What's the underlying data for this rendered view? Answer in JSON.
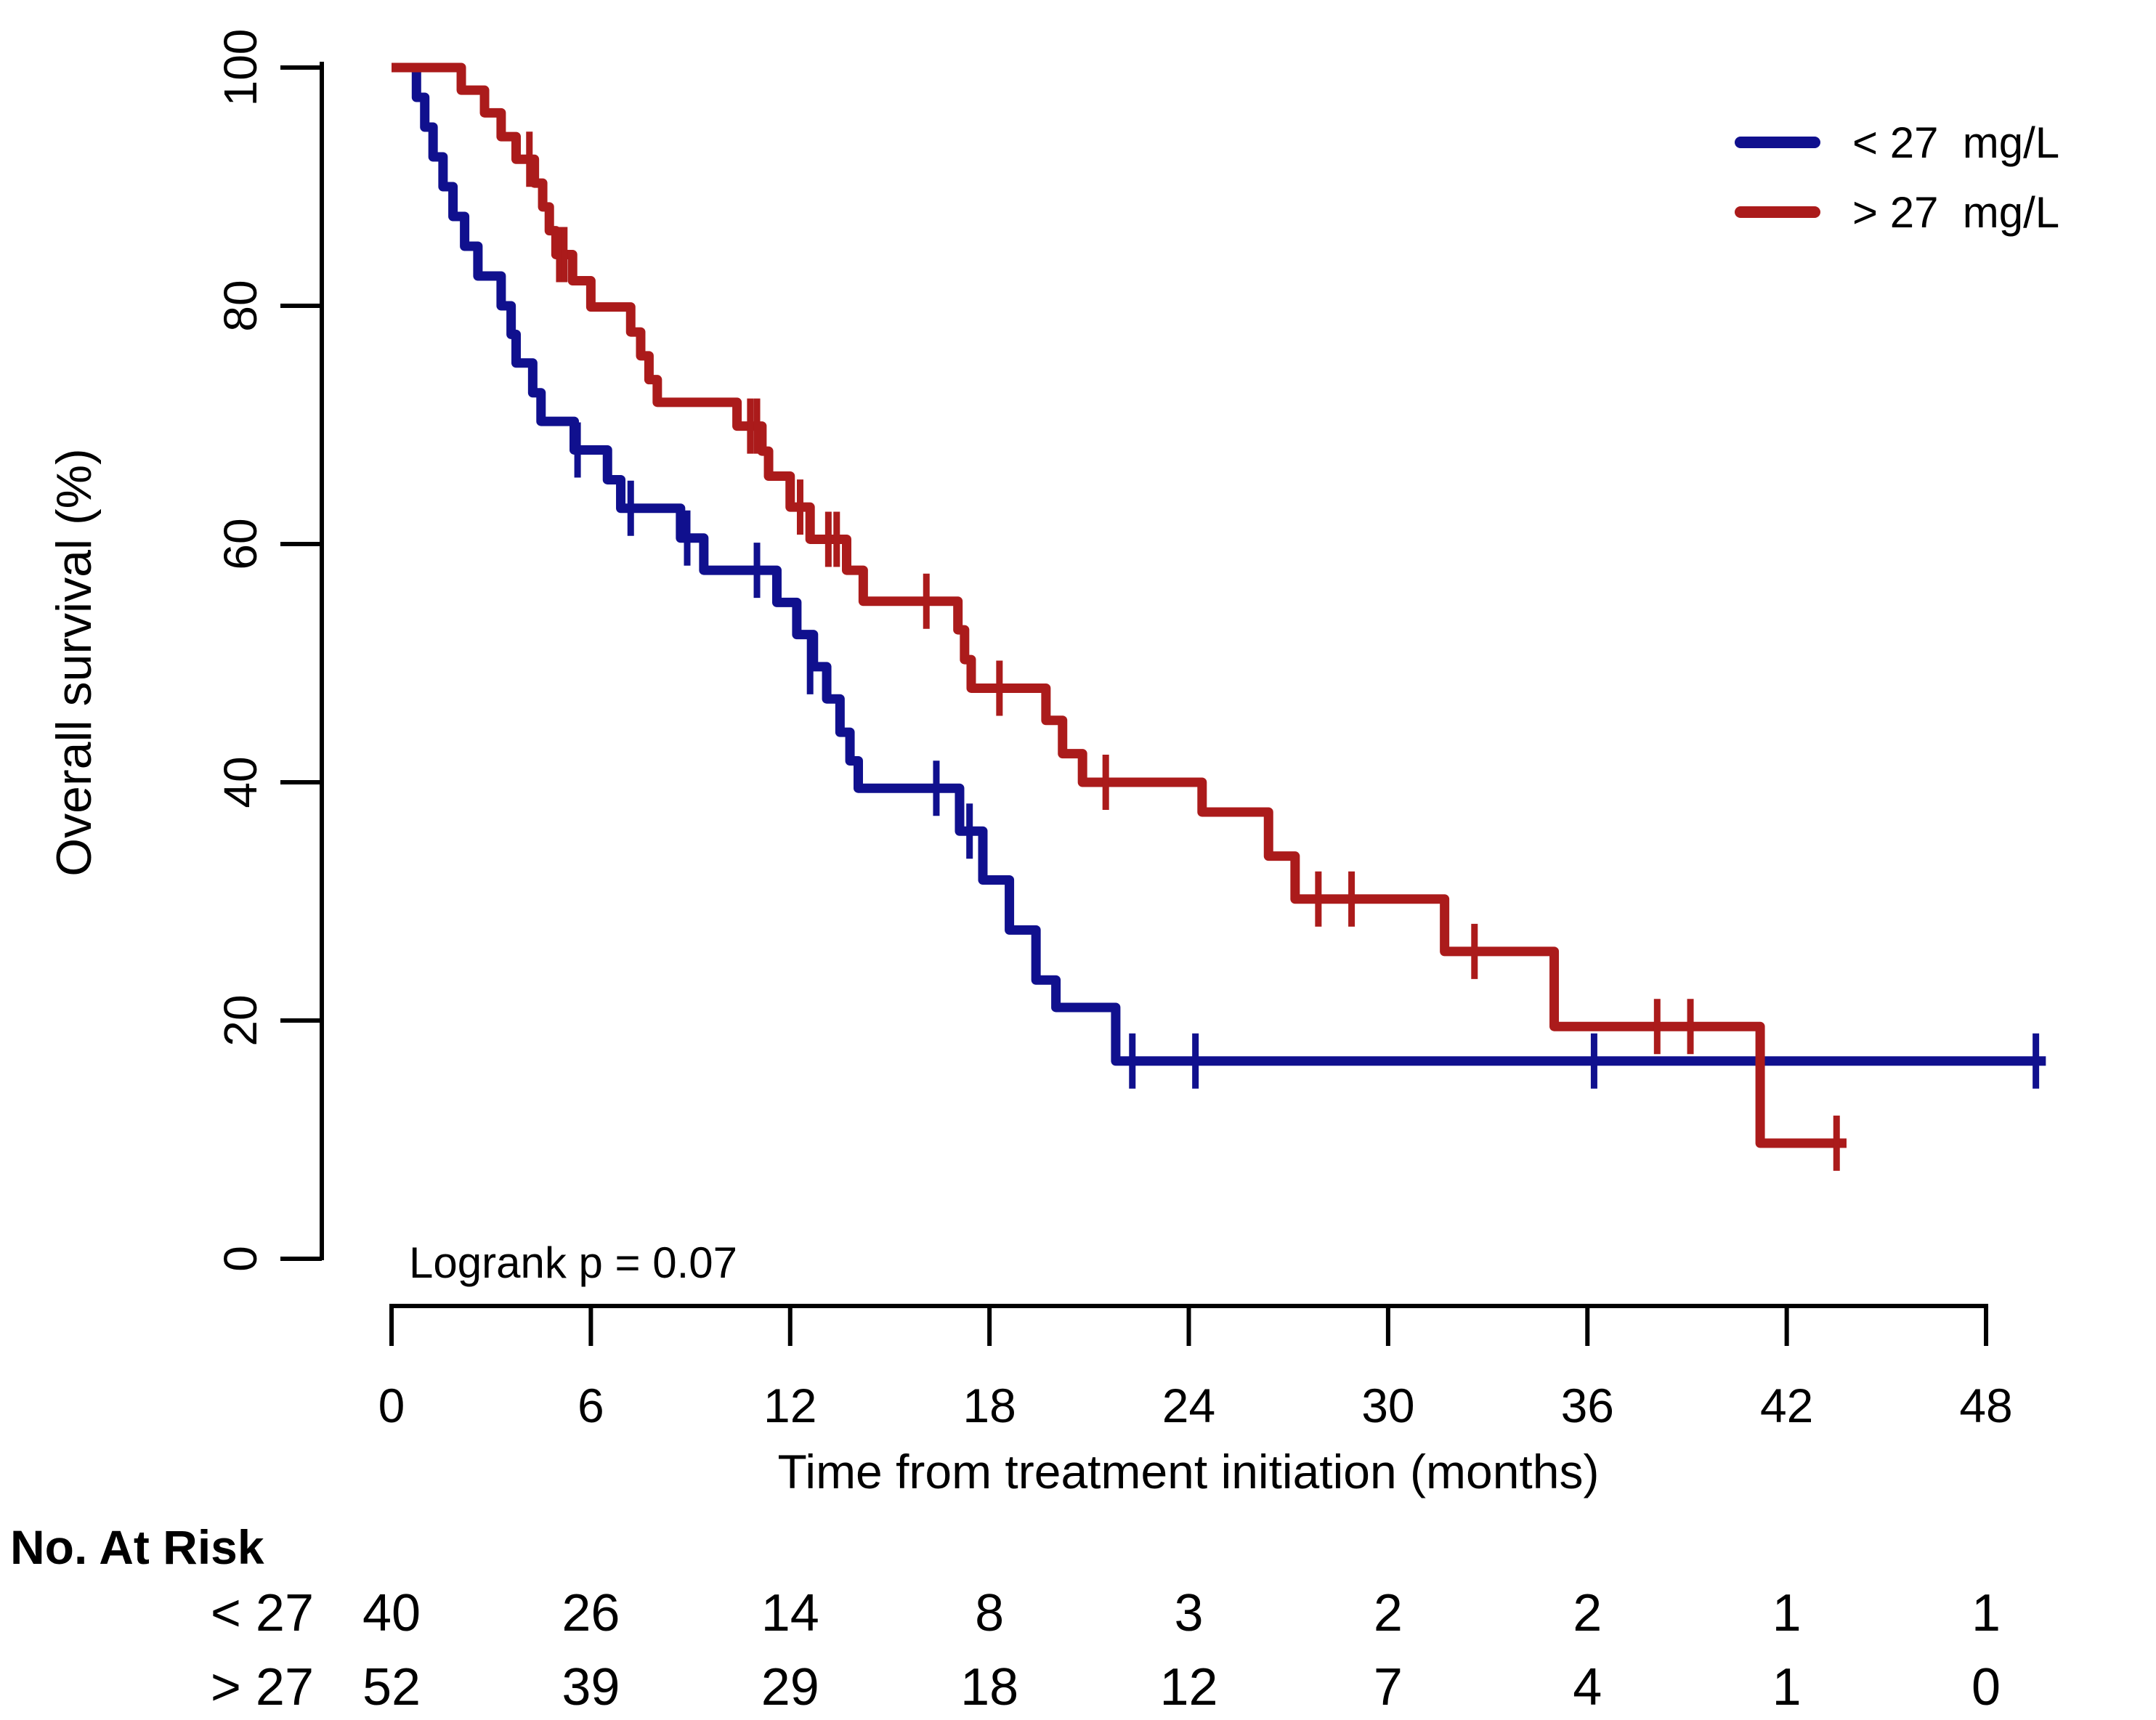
{
  "figure": {
    "y_axis_label": "Overall survival (%)",
    "x_axis_label": "Time from treatment initiation (months)",
    "annotation": "Logrank p = 0.07"
  },
  "legend": {
    "items": [
      {
        "label": "< 27  mg/L",
        "color": "#10108E"
      },
      {
        "label": "> 27  mg/L",
        "color": "#AB1B1B"
      }
    ]
  },
  "risk_table": {
    "title": "No. At Risk",
    "times": [
      0,
      6,
      12,
      18,
      24,
      30,
      36,
      42,
      48
    ],
    "rows": [
      {
        "label": "< 27",
        "counts": [
          40,
          26,
          14,
          8,
          3,
          2,
          2,
          1,
          1
        ]
      },
      {
        "label": "> 27",
        "counts": [
          52,
          39,
          29,
          18,
          12,
          7,
          4,
          1,
          0
        ]
      }
    ]
  },
  "chart_data": {
    "type": "line",
    "subtype": "kaplan-meier-step",
    "title": "",
    "xlabel": "Time from treatment initiation (months)",
    "ylabel": "Overall survival (%)",
    "xlim": [
      0,
      48
    ],
    "ylim": [
      0,
      100
    ],
    "x_ticks": [
      0,
      6,
      12,
      18,
      24,
      30,
      36,
      42,
      48
    ],
    "y_ticks": [
      0,
      20,
      40,
      60,
      80,
      100
    ],
    "grid": false,
    "legend_position": "top-right",
    "annotation": "Logrank p = 0.07",
    "series": [
      {
        "name": "< 27  mg/L",
        "color": "#10108E",
        "n": 40,
        "end_time": 49.8,
        "steps": [
          [
            0,
            100
          ],
          [
            0.75,
            97.5
          ],
          [
            1.0,
            95.0
          ],
          [
            1.25,
            92.5
          ],
          [
            1.55,
            90.0
          ],
          [
            1.85,
            87.5
          ],
          [
            2.2,
            85.0
          ],
          [
            2.6,
            82.5
          ],
          [
            3.3,
            80.0
          ],
          [
            3.6,
            77.6
          ],
          [
            3.75,
            75.2
          ],
          [
            4.25,
            72.7
          ],
          [
            4.5,
            70.3
          ],
          [
            5.5,
            67.9
          ],
          [
            6.5,
            65.4
          ],
          [
            6.9,
            63.0
          ],
          [
            8.7,
            60.5
          ],
          [
            9.4,
            57.8
          ],
          [
            11.6,
            55.1
          ],
          [
            12.2,
            52.4
          ],
          [
            12.7,
            49.7
          ],
          [
            13.1,
            47.0
          ],
          [
            13.5,
            44.2
          ],
          [
            13.8,
            41.8
          ],
          [
            14.05,
            39.5
          ],
          [
            17.1,
            35.9
          ],
          [
            17.8,
            31.8
          ],
          [
            18.6,
            27.6
          ],
          [
            19.4,
            23.4
          ],
          [
            20.0,
            21.1
          ],
          [
            21.8,
            16.6
          ]
        ],
        "censor_marks": [
          [
            5.6,
            67.9
          ],
          [
            7.2,
            63.0
          ],
          [
            8.9,
            60.5
          ],
          [
            11.0,
            57.8
          ],
          [
            12.6,
            49.7
          ],
          [
            16.4,
            39.5
          ],
          [
            17.4,
            35.9
          ],
          [
            22.3,
            16.6
          ],
          [
            24.2,
            16.6
          ],
          [
            36.2,
            16.6
          ],
          [
            49.5,
            16.6
          ]
        ]
      },
      {
        "name": "> 27  mg/L",
        "color": "#AB1B1B",
        "n": 52,
        "end_time": 43.8,
        "steps": [
          [
            0,
            100
          ],
          [
            2.1,
            98.1
          ],
          [
            2.8,
            96.2
          ],
          [
            3.3,
            94.2
          ],
          [
            3.75,
            92.3
          ],
          [
            4.3,
            90.3
          ],
          [
            4.55,
            88.3
          ],
          [
            4.75,
            86.3
          ],
          [
            4.95,
            84.3
          ],
          [
            5.45,
            82.1
          ],
          [
            6.0,
            79.9
          ],
          [
            7.2,
            77.8
          ],
          [
            7.5,
            75.8
          ],
          [
            7.75,
            73.8
          ],
          [
            8.0,
            71.9
          ],
          [
            10.4,
            69.9
          ],
          [
            11.15,
            67.8
          ],
          [
            11.35,
            65.7
          ],
          [
            12.0,
            63.1
          ],
          [
            12.6,
            60.4
          ],
          [
            13.7,
            57.8
          ],
          [
            14.2,
            55.2
          ],
          [
            17.05,
            52.8
          ],
          [
            17.25,
            50.3
          ],
          [
            17.45,
            47.9
          ],
          [
            19.7,
            45.2
          ],
          [
            20.2,
            42.4
          ],
          [
            20.8,
            40.0
          ],
          [
            24.4,
            37.5
          ],
          [
            26.4,
            33.8
          ],
          [
            27.2,
            30.2
          ],
          [
            31.7,
            25.8
          ],
          [
            35.0,
            19.5
          ],
          [
            41.2,
            9.7
          ]
        ],
        "censor_marks": [
          [
            4.15,
            92.3
          ],
          [
            5.05,
            84.3
          ],
          [
            5.2,
            84.3
          ],
          [
            10.8,
            69.9
          ],
          [
            11.0,
            69.9
          ],
          [
            12.3,
            63.1
          ],
          [
            13.15,
            60.4
          ],
          [
            13.4,
            60.4
          ],
          [
            16.1,
            55.2
          ],
          [
            18.3,
            47.9
          ],
          [
            21.5,
            40.0
          ],
          [
            27.9,
            30.2
          ],
          [
            28.9,
            30.2
          ],
          [
            32.6,
            25.8
          ],
          [
            38.1,
            19.5
          ],
          [
            39.1,
            19.5
          ],
          [
            43.5,
            9.7
          ]
        ]
      }
    ]
  }
}
